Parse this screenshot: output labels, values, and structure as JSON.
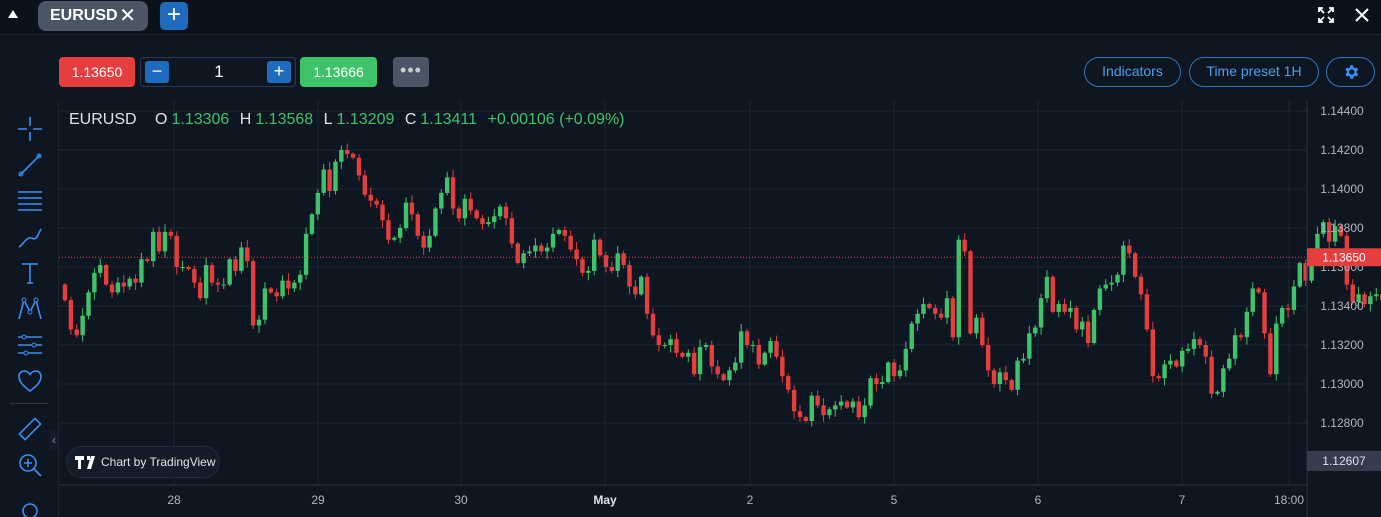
{
  "tabs": [
    {
      "label": "EURUSD"
    }
  ],
  "trade": {
    "sell_price": "1.13650",
    "quantity": "1",
    "buy_price": "1.13666",
    "more": "•••"
  },
  "toolbar": {
    "indicators": "Indicators",
    "time_preset": "Time preset 1H"
  },
  "legend": {
    "symbol": "EURUSD",
    "o_label": "O",
    "o": "1.13306",
    "h_label": "H",
    "h": "1.13568",
    "l_label": "L",
    "l": "1.13209",
    "c_label": "C",
    "c": "1.13411",
    "change": "+0.00106 (+0.09%)"
  },
  "branding": "Chart by TradingView",
  "colors": {
    "up": "#3fc36a",
    "down": "#e53e3e",
    "accent": "#1f6cbf",
    "background": "#0e1621",
    "grid": "#1c2633"
  },
  "chart_data": {
    "type": "candlestick",
    "symbol": "EURUSD",
    "timeframe": "1H",
    "current_price": 1.1365,
    "lowest_visible": 1.12607,
    "y_ticks": [
      "1.14400",
      "1.14200",
      "1.14000",
      "1.13800",
      "1.13600",
      "1.13400",
      "1.13200",
      "1.13000",
      "1.12800"
    ],
    "y_badges": [
      "1.13650",
      "1.12607"
    ],
    "ylim": [
      1.1252,
      1.145
    ],
    "x_ticks": [
      "28",
      "29",
      "30",
      "May",
      "2",
      "5",
      "6",
      "7",
      "18:00"
    ],
    "grid": true,
    "closes": [
      1.1343,
      1.1328,
      1.1325,
      1.1335,
      1.1347,
      1.1357,
      1.1361,
      1.1351,
      1.1347,
      1.1352,
      1.135,
      1.1354,
      1.1352,
      1.1364,
      1.1363,
      1.1378,
      1.1368,
      1.1378,
      1.1376,
      1.136,
      1.136,
      1.1359,
      1.1352,
      1.1344,
      1.1361,
      1.1352,
      1.1351,
      1.1351,
      1.1364,
      1.1358,
      1.137,
      1.1363,
      1.133,
      1.1333,
      1.1349,
      1.1347,
      1.1345,
      1.1353,
      1.1349,
      1.1352,
      1.1356,
      1.1377,
      1.1387,
      1.1398,
      1.141,
      1.1399,
      1.1414,
      1.142,
      1.1418,
      1.1416,
      1.1407,
      1.1397,
      1.1394,
      1.1392,
      1.1384,
      1.1374,
      1.1375,
      1.138,
      1.1393,
      1.1387,
      1.1376,
      1.137,
      1.1376,
      1.139,
      1.1398,
      1.1406,
      1.139,
      1.1385,
      1.1395,
      1.1389,
      1.1385,
      1.1382,
      1.1383,
      1.1386,
      1.1391,
      1.1385,
      1.1372,
      1.1362,
      1.1367,
      1.1368,
      1.1371,
      1.1368,
      1.137,
      1.1377,
      1.1379,
      1.1376,
      1.1369,
      1.1364,
      1.1357,
      1.1358,
      1.1374,
      1.1366,
      1.136,
      1.1358,
      1.1367,
      1.1361,
      1.135,
      1.1346,
      1.1355,
      1.1336,
      1.1325,
      1.132,
      1.132,
      1.1323,
      1.1316,
      1.1314,
      1.1316,
      1.1305,
      1.1319,
      1.132,
      1.1309,
      1.1305,
      1.1302,
      1.1307,
      1.1311,
      1.1327,
      1.132,
      1.132,
      1.131,
      1.1316,
      1.1322,
      1.1314,
      1.1304,
      1.1297,
      1.1286,
      1.1283,
      1.1281,
      1.1294,
      1.1289,
      1.1284,
      1.1287,
      1.1289,
      1.1291,
      1.1288,
      1.1291,
      1.1283,
      1.1289,
      1.1303,
      1.13,
      1.1301,
      1.1311,
      1.1304,
      1.1307,
      1.1318,
      1.1331,
      1.1336,
      1.1341,
      1.1339,
      1.1336,
      1.1334,
      1.1344,
      1.1324,
      1.1374,
      1.1368,
      1.1326,
      1.1334,
      1.132,
      1.1307,
      1.13,
      1.1306,
      1.1302,
      1.1297,
      1.1312,
      1.1313,
      1.1326,
      1.1329,
      1.1344,
      1.1355,
      1.1337,
      1.1341,
      1.1337,
      1.1339,
      1.1328,
      1.1332,
      1.1321,
      1.1338,
      1.1349,
      1.1351,
      1.1352,
      1.1356,
      1.1371,
      1.1367,
      1.1355,
      1.1346,
      1.1328,
      1.1304,
      1.1303,
      1.131,
      1.1312,
      1.1309,
      1.1317,
      1.1318,
      1.1323,
      1.132,
      1.1314,
      1.1295,
      1.1296,
      1.1308,
      1.1313,
      1.1325,
      1.1324,
      1.1337,
      1.1349,
      1.1347,
      1.1326,
      1.1305,
      1.1331,
      1.1339,
      1.1338,
      1.135,
      1.1362,
      1.1353,
      1.1367,
      1.1377,
      1.1383,
      1.1373,
      1.1381,
      1.1376,
      1.1351,
      1.1342,
      1.1346,
      1.1341,
      1.1345,
      1.1346,
      1.1343,
      1.1346,
      1.1363,
      1.1374,
      1.1365
    ]
  }
}
